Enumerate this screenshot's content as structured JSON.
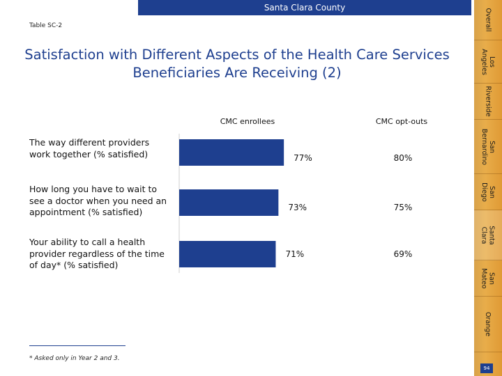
{
  "header": {
    "tab_label": "Santa Clara County",
    "table_id": "Table SC-2",
    "title": "Satisfaction with Different Aspects of the Health Care Services Beneficiaries Are Receiving (2)"
  },
  "chart_data": {
    "type": "bar",
    "orientation": "horizontal",
    "categories": [
      "The way different providers work together (% satisfied)",
      "How long you have to wait to see a doctor when you need an appointment (% satisfied)",
      "Your ability to call a health provider regardless of the time of day* (% satisfied)"
    ],
    "series": [
      {
        "name": "CMC enrollees",
        "values": [
          77,
          73,
          71
        ],
        "display": "bars",
        "labels": [
          "77%",
          "73%",
          "71%"
        ]
      },
      {
        "name": "CMC opt-outs",
        "values": [
          80,
          75,
          69
        ],
        "display": "text",
        "labels": [
          "80%",
          "75%",
          "69%"
        ]
      }
    ],
    "xlim": [
      0,
      100
    ],
    "grid": false,
    "legend": "column headers above",
    "colors": {
      "bar": "#1e3f8f"
    }
  },
  "footnote": "* Asked only in Year 2 and 3.",
  "side_nav": {
    "items": [
      "Overall",
      "Los\nAngeles",
      "Riverside",
      "San\nBernardino",
      "San\nDiego",
      "Santa\nClara",
      "San\nMateo",
      "Orange"
    ],
    "active": "Santa\nClara"
  },
  "page_number": "94",
  "colors": {
    "accent": "#1e3f8f",
    "nav": "#e8ad4a"
  }
}
